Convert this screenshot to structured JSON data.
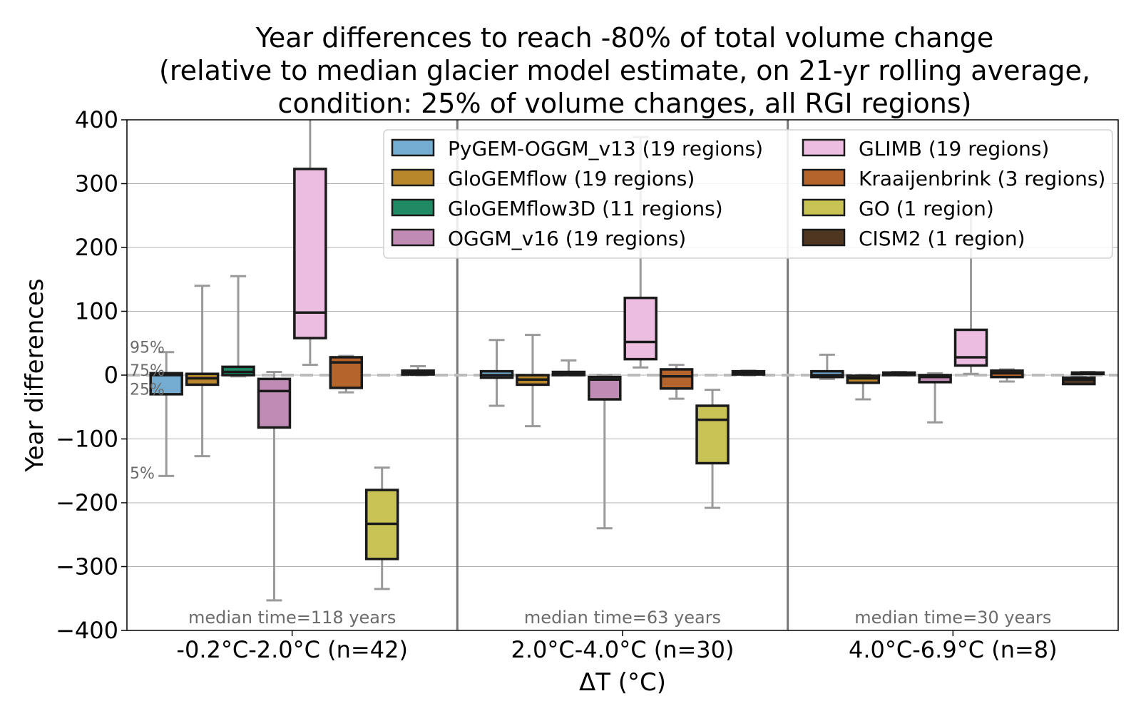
{
  "chart_data": {
    "type": "boxplot",
    "title_lines": [
      "Year differences to reach -80% of total volume change",
      "(relative to median glacier model estimate, on 21-yr rolling average,",
      "condition: 25% of volume changes, all RGI regions)"
    ],
    "xlabel": "ΔT (°C)",
    "ylabel": "Year differences",
    "ylim": [
      -400,
      400
    ],
    "yticks": [
      -400,
      -300,
      -200,
      -100,
      0,
      100,
      200,
      300,
      400
    ],
    "ytick_labels": [
      "−400",
      "−300",
      "−200",
      "−100",
      "0",
      "100",
      "200",
      "300",
      "400"
    ],
    "grid": "horizontal",
    "legend_placement": "top-right",
    "reference_line": 0,
    "percentile_labels": [
      {
        "label": "95%",
        "value": 44
      },
      {
        "label": "75%",
        "value": 8
      },
      {
        "label": "25%",
        "value": -22
      },
      {
        "label": "5%",
        "value": -153
      }
    ],
    "groups": [
      {
        "label": "-0.2°C-2.0°C (n=42)",
        "median_time": "median time=118 years"
      },
      {
        "label": "2.0°C-4.0°C (n=30)",
        "median_time": "median time=63 years"
      },
      {
        "label": "4.0°C-6.9°C (n=8)",
        "median_time": "median time=30 years"
      }
    ],
    "series": [
      {
        "name": "PyGEM-OGGM_v13 (19 regions)",
        "color": "#74add1",
        "boxes": [
          {
            "whislo": -158,
            "q1": -30,
            "med": 0,
            "q3": 3,
            "whishi": 36
          },
          {
            "whislo": -48,
            "q1": -4,
            "med": 0,
            "q3": 6,
            "whishi": 55
          },
          {
            "whislo": -6,
            "q1": -3,
            "med": 0,
            "q3": 6,
            "whishi": 32
          }
        ]
      },
      {
        "name": "GloGEMflow (19 regions)",
        "color": "#b8862b",
        "boxes": [
          {
            "whislo": -127,
            "q1": -15,
            "med": -5,
            "q3": 2,
            "whishi": 140
          },
          {
            "whislo": -80,
            "q1": -15,
            "med": -7,
            "q3": 0,
            "whishi": 63
          },
          {
            "whislo": -38,
            "q1": -12,
            "med": -5,
            "q3": -1,
            "whishi": 0
          }
        ]
      },
      {
        "name": "GloGEMflow3D (11 regions)",
        "color": "#1f8a64",
        "boxes": [
          {
            "whislo": -2,
            "q1": 0,
            "med": 5,
            "q3": 13,
            "whishi": 155
          },
          {
            "whislo": 0,
            "q1": 0,
            "med": 2,
            "q3": 5,
            "whishi": 23
          },
          {
            "whislo": 0,
            "q1": 0,
            "med": 1,
            "q3": 4,
            "whishi": 5
          }
        ]
      },
      {
        "name": "OGGM_v16 (19 regions)",
        "color": "#c08bb5",
        "boxes": [
          {
            "whislo": -353,
            "q1": -82,
            "med": -25,
            "q3": -6,
            "whishi": 5
          },
          {
            "whislo": -240,
            "q1": -38,
            "med": -7,
            "q3": -3,
            "whishi": 0
          },
          {
            "whislo": -74,
            "q1": -11,
            "med": -3,
            "q3": 0,
            "whishi": 3
          }
        ]
      },
      {
        "name": "GLIMB (19 regions)",
        "color": "#ecbde0",
        "boxes": [
          {
            "whislo": 16,
            "q1": 58,
            "med": 98,
            "q3": 323,
            "whishi": 400
          },
          {
            "whislo": 12,
            "q1": 25,
            "med": 52,
            "q3": 121,
            "whishi": 373
          },
          {
            "whislo": 2,
            "q1": 15,
            "med": 28,
            "q3": 71,
            "whishi": 250
          }
        ]
      },
      {
        "name": "Kraaijenbrink (3 regions)",
        "color": "#b5652b",
        "boxes": [
          {
            "whislo": -27,
            "q1": -20,
            "med": 20,
            "q3": 28,
            "whishi": 30
          },
          {
            "whislo": -37,
            "q1": -21,
            "med": -2,
            "q3": 9,
            "whishi": 16
          },
          {
            "whislo": -10,
            "q1": -3,
            "med": 3,
            "q3": 7,
            "whishi": 9
          }
        ]
      },
      {
        "name": "GO (1 region)",
        "color": "#c9c255",
        "boxes": [
          {
            "whislo": -335,
            "q1": -288,
            "med": -233,
            "q3": -180,
            "whishi": -145
          },
          {
            "whislo": -208,
            "q1": -138,
            "med": -70,
            "q3": -48,
            "whishi": -23
          },
          null
        ]
      },
      {
        "name": "CISM2 (1 region)",
        "color": "#4f3621",
        "boxes": [
          {
            "whislo": 0,
            "q1": 1,
            "med": 3,
            "q3": 7,
            "whishi": 14
          },
          {
            "whislo": 0,
            "q1": 1,
            "med": 3,
            "q3": 6,
            "whishi": 7
          },
          {
            "whislo": -14,
            "q1": -14,
            "med": -7,
            "q3": -4,
            "whishi": -3
          }
        ]
      }
    ],
    "extra_box": {
      "group": 2,
      "whislo": 2,
      "q1": 2,
      "med": 3,
      "q3": 4,
      "whishi": 5
    }
  }
}
